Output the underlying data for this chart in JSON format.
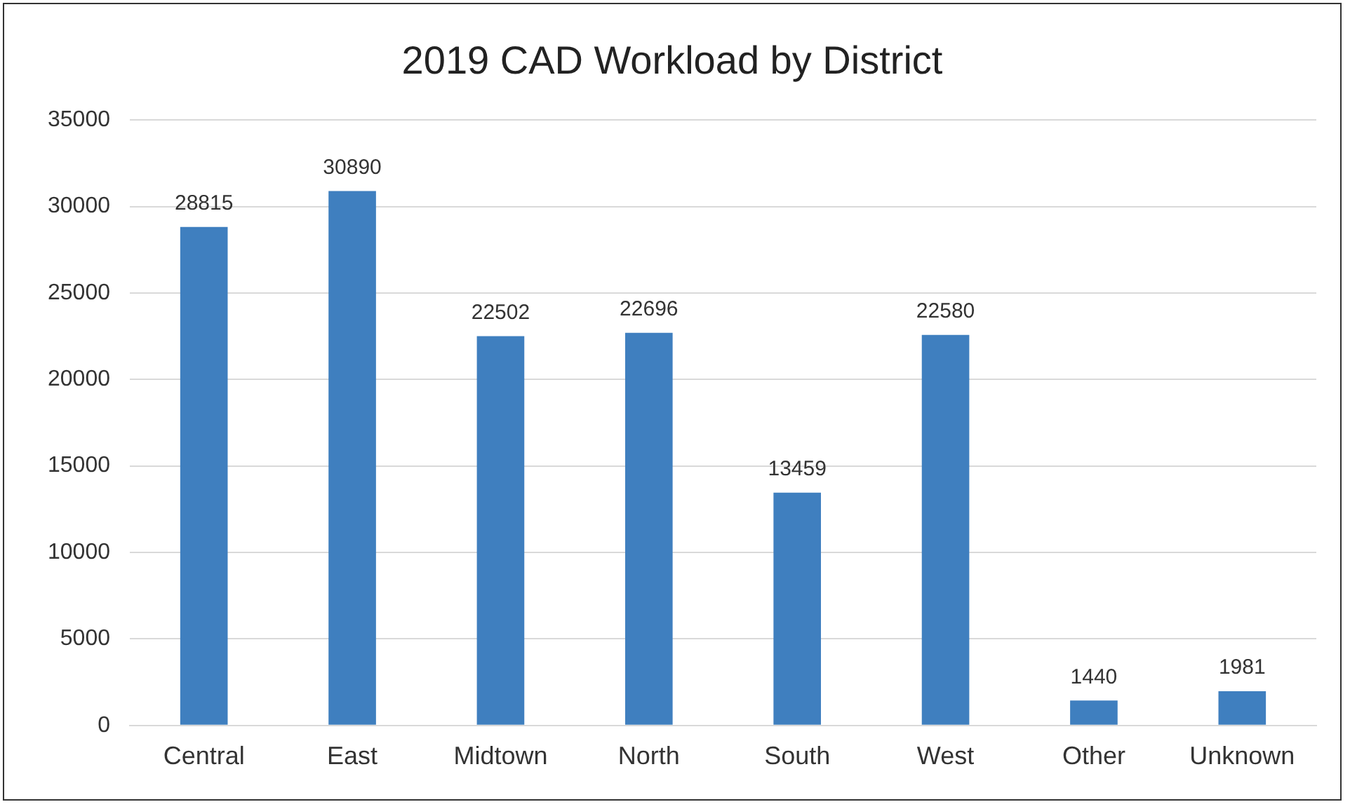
{
  "chart_data": {
    "type": "bar",
    "title": "2019 CAD Workload by District",
    "categories": [
      "Central",
      "East",
      "Midtown",
      "North",
      "South",
      "West",
      "Other",
      "Unknown"
    ],
    "values": [
      28815,
      30890,
      22502,
      22696,
      13459,
      22580,
      1440,
      1981
    ],
    "color": "#3f7fbf",
    "ylim": [
      0,
      35000
    ],
    "yticks": [
      0,
      5000,
      10000,
      15000,
      20000,
      25000,
      30000,
      35000
    ],
    "grid": "y",
    "data_labels": true
  }
}
